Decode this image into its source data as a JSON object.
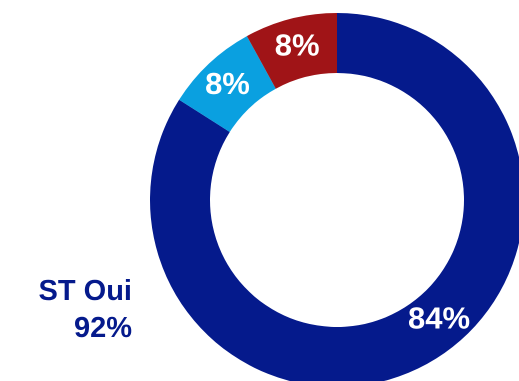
{
  "chart_data": {
    "type": "pie",
    "variant": "donut",
    "title": "",
    "slices": [
      {
        "label": "84%",
        "value": 84,
        "color": "#051A8C",
        "label_color": "#FFFFFF"
      },
      {
        "label": "8%",
        "value": 8,
        "color": "#0AA0E0",
        "label_color": "#FFFFFF"
      },
      {
        "label": "8%",
        "value": 8,
        "color": "#A01417",
        "label_color": "#FFFFFF"
      }
    ],
    "group_label": {
      "name": "ST Oui",
      "value": "92%",
      "color": "#051A8C"
    }
  }
}
